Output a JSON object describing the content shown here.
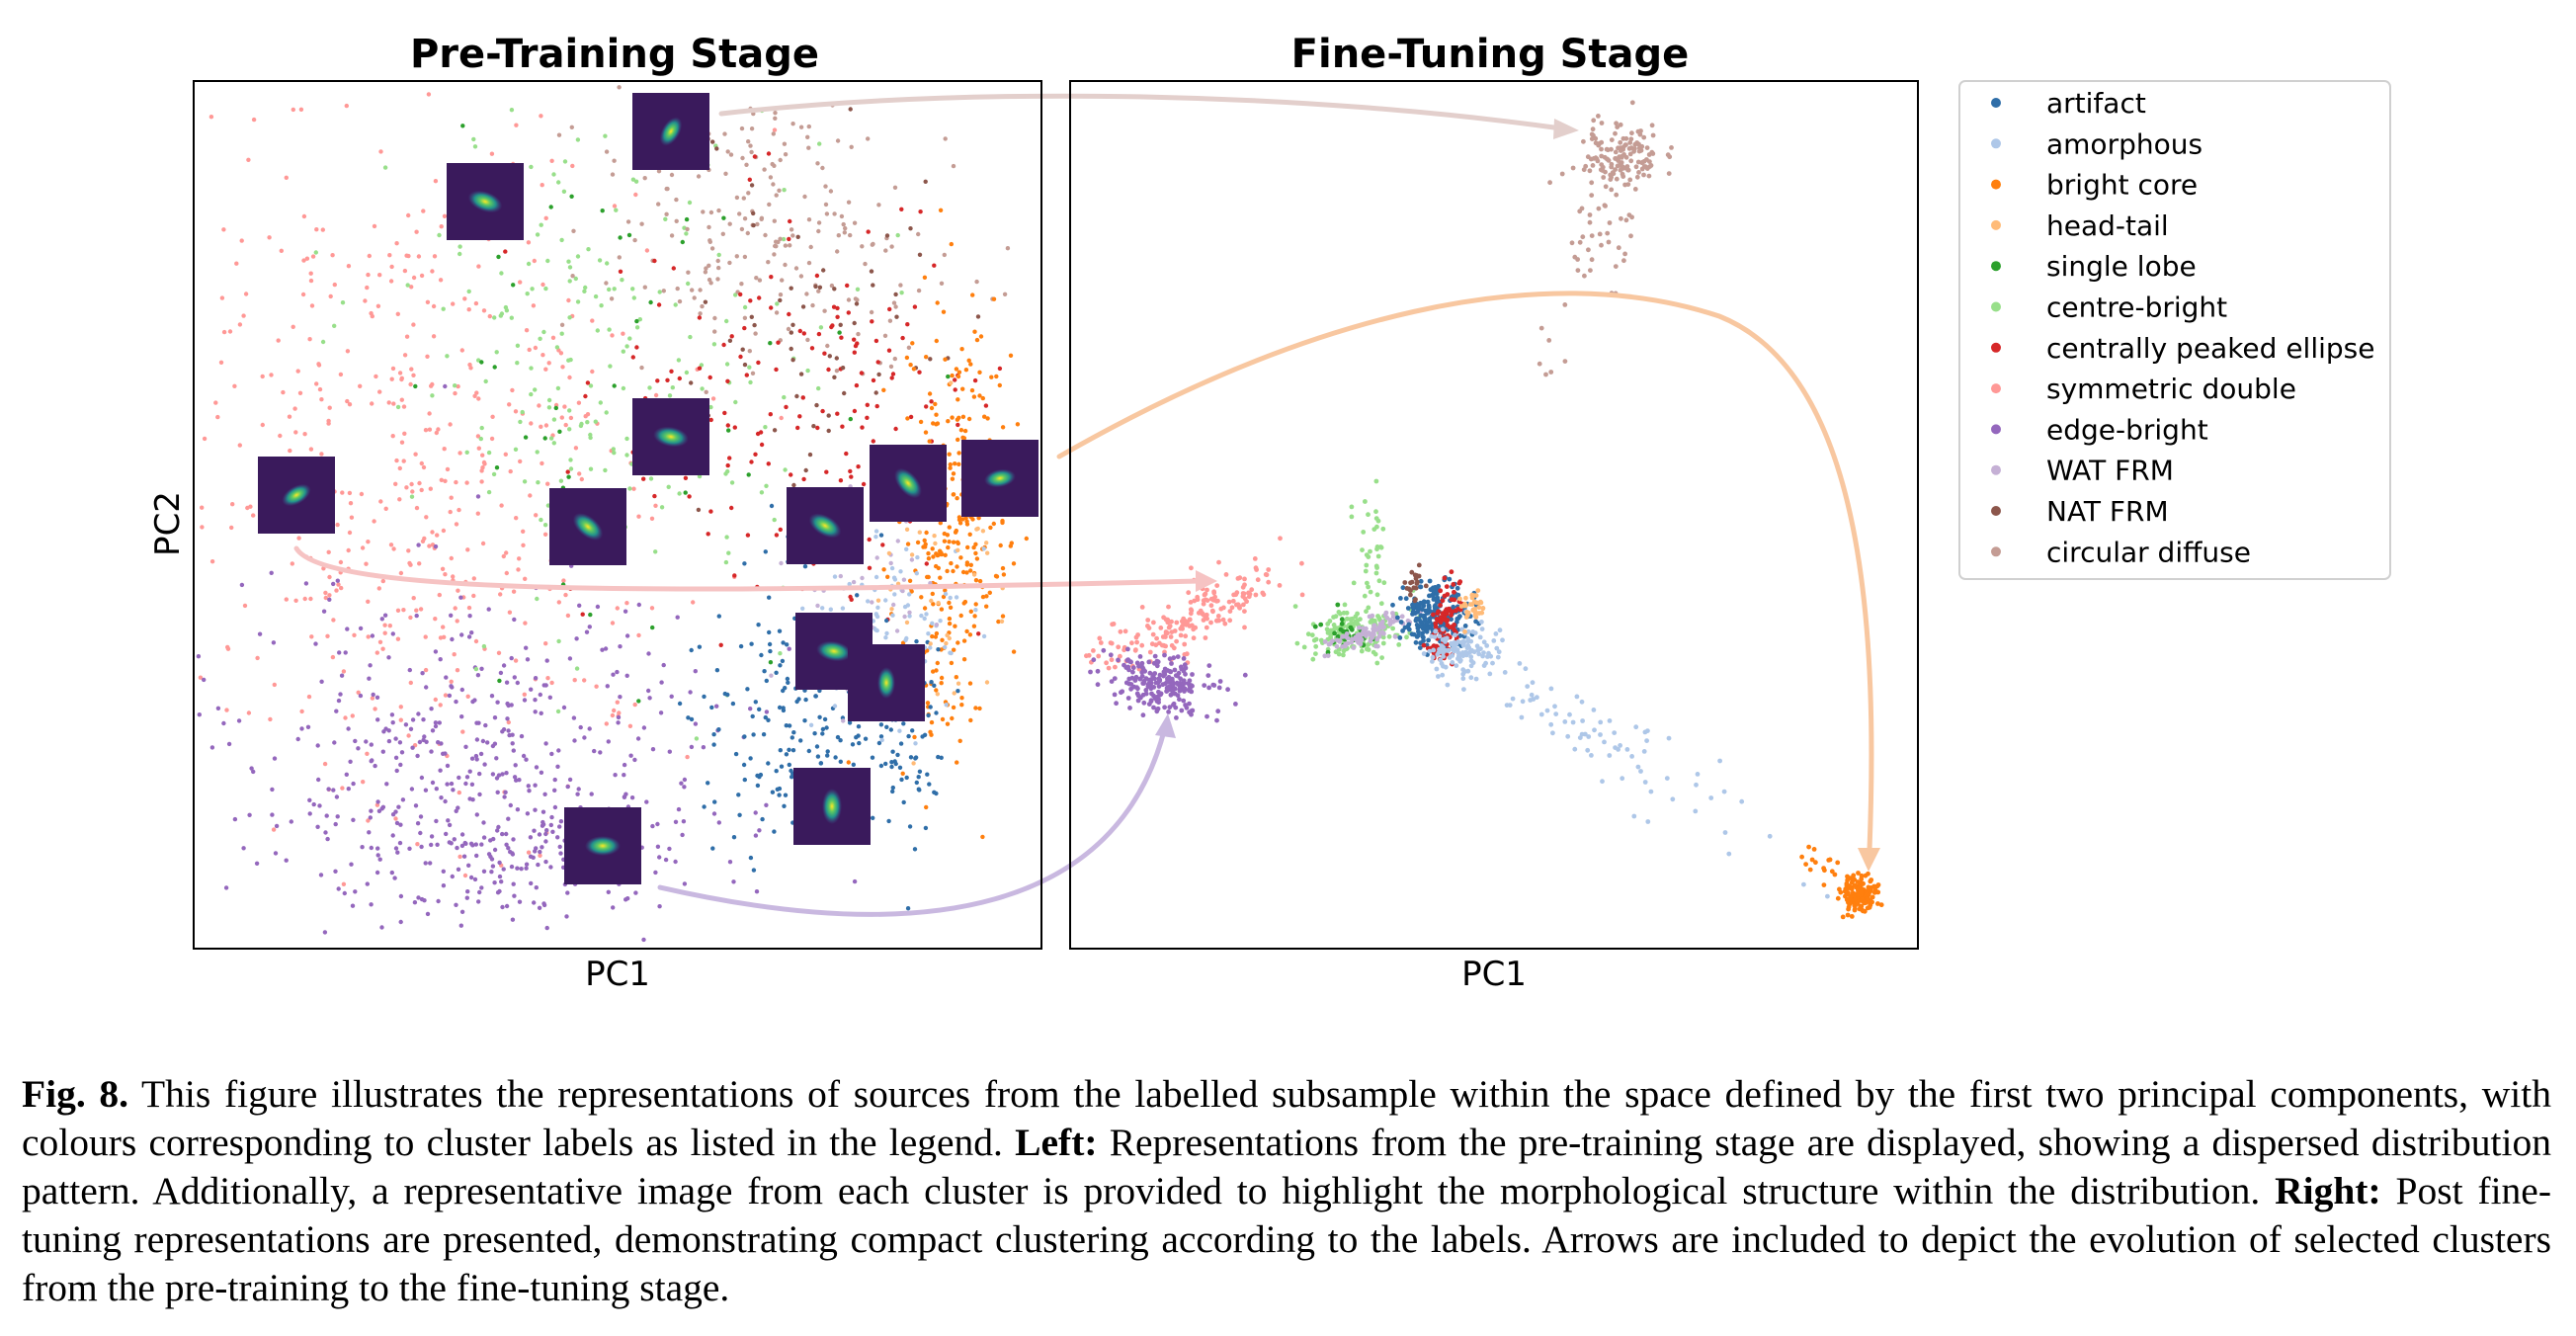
{
  "figure": {
    "left_panel": {
      "title": "Pre-Training Stage",
      "xlabel": "PC1",
      "ylabel": "PC2"
    },
    "right_panel": {
      "title": "Fine-Tuning Stage",
      "xlabel": "PC1"
    }
  },
  "legend": [
    {
      "label": "artifact",
      "color": "#2f6ea8"
    },
    {
      "label": "amorphous",
      "color": "#aec7e8"
    },
    {
      "label": "bright core",
      "color": "#ff7f0e"
    },
    {
      "label": "head-tail",
      "color": "#ffbb78"
    },
    {
      "label": "single lobe",
      "color": "#2ca02c"
    },
    {
      "label": "centre-bright",
      "color": "#98df8a"
    },
    {
      "label": "centrally peaked ellipse",
      "color": "#d62728"
    },
    {
      "label": "symmetric double",
      "color": "#ff9896"
    },
    {
      "label": "edge-bright",
      "color": "#9467bd"
    },
    {
      "label": "WAT FRM",
      "color": "#c5b0d5"
    },
    {
      "label": "NAT FRM",
      "color": "#8c564b"
    },
    {
      "label": "circular diffuse",
      "color": "#c49c94"
    }
  ],
  "caption": {
    "fig_label": "Fig. 8.",
    "intro": " This figure illustrates the representations of sources from the labelled subsample within the space defined by the first two principal components, with colours corresponding to cluster labels as listed in the legend. ",
    "left_label": "Left:",
    "left_text": " Representations from the pre-training stage are displayed, showing a dispersed distribution pattern. Additionally, a representative image from each cluster is provided to highlight the morphological structure within the distribution. ",
    "right_label": "Right:",
    "right_text": " Post fine-tuning representations are presented, demonstrating compact clustering according to the labels. Arrows are included to depict the evolution of selected clusters from the pre-training to the fine-tuning stage."
  }
}
